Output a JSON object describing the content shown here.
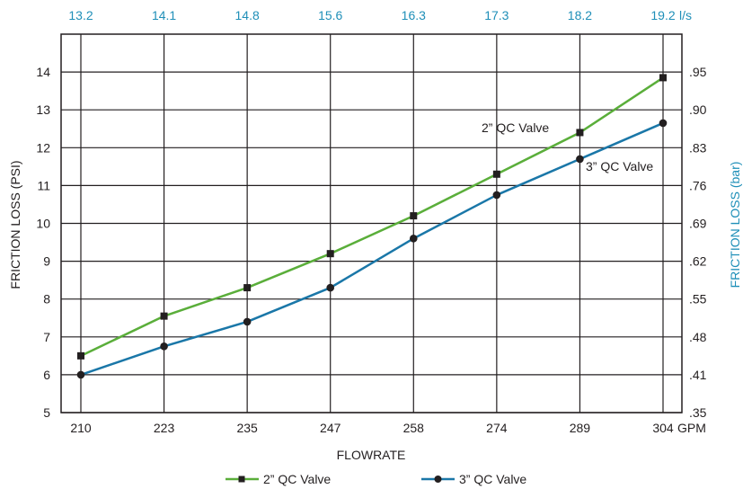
{
  "chart_data": {
    "type": "line",
    "categories": [
      "210",
      "223",
      "235",
      "247",
      "258",
      "274",
      "289",
      "304"
    ],
    "x_unit_suffix": "GPM",
    "top_axis_labels": [
      "13.2",
      "14.1",
      "14.8",
      "15.6",
      "16.3",
      "17.3",
      "18.2",
      "19.2"
    ],
    "top_axis_unit_suffix": "l/s",
    "xlabel": "FLOWRATE",
    "ylabel": "FRICTION LOSS (PSI)",
    "ylabel_right": "FRICTION LOSS (bar)",
    "ylim": [
      5,
      15
    ],
    "y_ticks": [
      5,
      6,
      7,
      8,
      9,
      10,
      11,
      12,
      13,
      14
    ],
    "right_axis_labels": [
      ".35",
      ".41",
      ".48",
      ".55",
      ".62",
      ".69",
      ".76",
      ".83",
      ".90",
      ".95"
    ],
    "grid": true,
    "legend_position": "bottom",
    "series": [
      {
        "name": "2” QC Valve",
        "color": "#5aae3a",
        "marker": "square",
        "values": [
          6.5,
          7.55,
          8.3,
          9.2,
          10.2,
          11.3,
          12.4,
          13.85
        ]
      },
      {
        "name": "3” QC Valve",
        "color": "#1a77a8",
        "marker": "circle",
        "values": [
          6.0,
          6.75,
          7.4,
          8.3,
          9.6,
          10.75,
          11.7,
          12.65
        ]
      }
    ],
    "annotations": [
      {
        "text": "2” QC Valve",
        "series": 0
      },
      {
        "text": "3” QC Valve",
        "series": 1
      }
    ]
  }
}
